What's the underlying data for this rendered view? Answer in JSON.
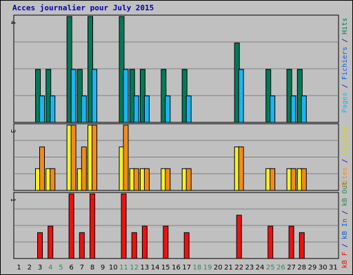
{
  "title": "Acces journalier pour July 2015",
  "colors": {
    "background": "#c0c0c0",
    "title": "#0000aa",
    "grid": "#808080",
    "hits": "#007a5a",
    "pages": "#1eb4f0",
    "visits": "#f2f22a",
    "sites": "#f08c1e",
    "kb_f": "#ee1111",
    "weekday": "#000000",
    "weekend": "#2e8b57"
  },
  "right_labels": {
    "top": [
      {
        "text": "Pages",
        "color": "#1eb4f0"
      },
      {
        "text": " / ",
        "color": "#0000aa"
      },
      {
        "text": "Fichiers",
        "color": "#1060d0"
      },
      {
        "text": " / ",
        "color": "#0000aa"
      },
      {
        "text": "Hits",
        "color": "#007a5a"
      }
    ],
    "middle": [
      {
        "text": "Sites",
        "color": "#f08c1e"
      },
      {
        "text": " / ",
        "color": "#0000aa"
      },
      {
        "text": "Visites",
        "color": "#d8d800"
      }
    ],
    "bottom": [
      {
        "text": "kB F",
        "color": "#ee1111"
      },
      {
        "text": " / ",
        "color": "#0000aa"
      },
      {
        "text": "kB In",
        "color": "#1060d0"
      },
      {
        "text": " / ",
        "color": "#0000aa"
      },
      {
        "text": "kB Out",
        "color": "#2e8b57"
      }
    ]
  },
  "chart_data": {
    "type": "bar",
    "title": "Acces journalier pour July 2015",
    "categories": [
      "1",
      "2",
      "3",
      "4",
      "5",
      "6",
      "7",
      "8",
      "9",
      "10",
      "11",
      "12",
      "13",
      "14",
      "15",
      "16",
      "17",
      "18",
      "19",
      "20",
      "21",
      "22",
      "23",
      "24",
      "25",
      "26",
      "27",
      "28",
      "29",
      "30",
      "31"
    ],
    "weekend_days": [
      "4",
      "5",
      "11",
      "12",
      "18",
      "19",
      "25",
      "26"
    ],
    "panels": [
      {
        "name": "hits-files-pages",
        "y_max_label": "4",
        "ylim": [
          0,
          4
        ],
        "series": [
          {
            "name": "Hits",
            "color": "#007a5a",
            "values": [
              0,
              0,
              2,
              2,
              0,
              4,
              2,
              4,
              0,
              0,
              4,
              2,
              2,
              0,
              2,
              0,
              2,
              0,
              0,
              0,
              0,
              3,
              0,
              0,
              2,
              0,
              2,
              2,
              0,
              0,
              0
            ]
          },
          {
            "name": "Pages",
            "color": "#1eb4f0",
            "values": [
              0,
              0,
              1,
              1,
              0,
              2,
              1,
              2,
              0,
              0,
              2,
              1,
              1,
              0,
              1,
              0,
              1,
              0,
              0,
              0,
              0,
              2,
              0,
              0,
              1,
              0,
              1,
              1,
              0,
              0,
              0
            ]
          }
        ]
      },
      {
        "name": "visits-sites",
        "y_max_label": "3",
        "ylim": [
          0,
          3
        ],
        "series": [
          {
            "name": "Visites",
            "color": "#f2f22a",
            "values": [
              0,
              0,
              1,
              1,
              0,
              3,
              1,
              3,
              0,
              0,
              2,
              1,
              1,
              0,
              1,
              0,
              1,
              0,
              0,
              0,
              0,
              2,
              0,
              0,
              1,
              0,
              1,
              1,
              0,
              0,
              0
            ]
          },
          {
            "name": "Sites",
            "color": "#f08c1e",
            "values": [
              0,
              0,
              2,
              1,
              0,
              3,
              2,
              3,
              0,
              0,
              3,
              1,
              1,
              0,
              1,
              0,
              1,
              0,
              0,
              0,
              0,
              2,
              0,
              0,
              1,
              0,
              1,
              1,
              0,
              0,
              0
            ]
          }
        ]
      },
      {
        "name": "kb-f",
        "y_max_label": "1",
        "ylim": [
          0,
          1
        ],
        "series": [
          {
            "name": "kB F",
            "color": "#ee1111",
            "values": [
              0,
              0,
              0.4,
              0.5,
              0,
              1,
              0.4,
              1,
              0,
              0,
              1,
              0.4,
              0.5,
              0,
              0.5,
              0,
              0.4,
              0,
              0,
              0,
              0,
              0.67,
              0,
              0,
              0.5,
              0,
              0.5,
              0.4,
              0,
              0,
              0
            ]
          }
        ]
      }
    ]
  }
}
